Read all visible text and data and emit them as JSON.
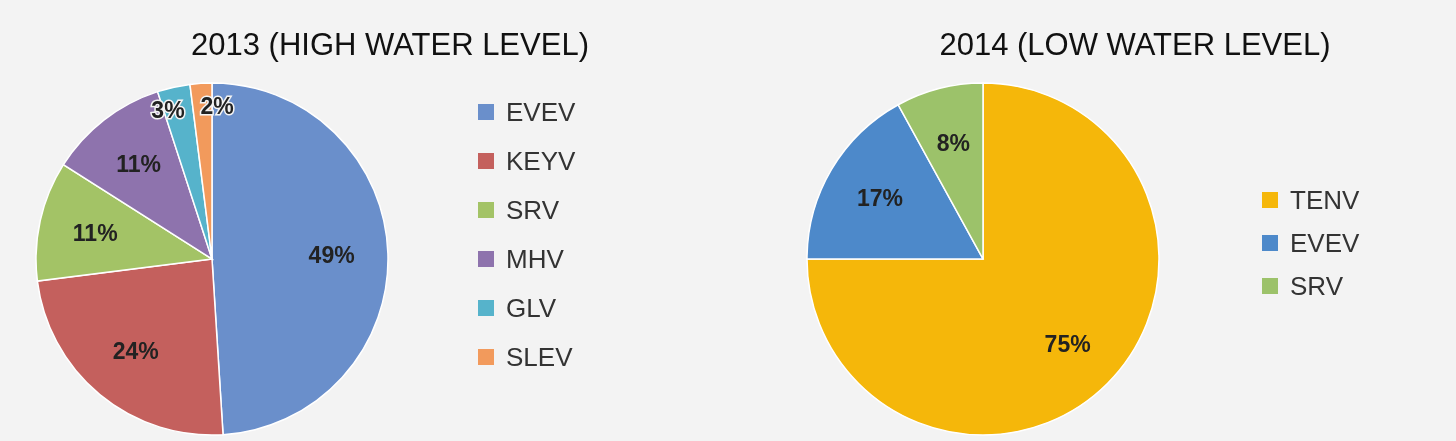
{
  "chart_data": [
    {
      "type": "pie",
      "title": "2013 (HIGH WATER LEVEL)",
      "categories": [
        "EVEV",
        "KEYV",
        "SRV",
        "MHV",
        "GLV",
        "SLEV"
      ],
      "values": [
        49,
        24,
        11,
        11,
        3,
        2
      ],
      "colors": [
        "#6a8fcb",
        "#c4605d",
        "#a3c366",
        "#8e73ad",
        "#56b3cb",
        "#f29a5c"
      ],
      "value_labels": [
        "49%",
        "24%",
        "11%",
        "11%",
        "3%",
        "2%"
      ],
      "legend": "right"
    },
    {
      "type": "pie",
      "title": "2014 (LOW WATER LEVEL)",
      "categories": [
        "TENV",
        "EVEV",
        "SRV"
      ],
      "values": [
        75,
        17,
        8
      ],
      "colors": [
        "#f5b70a",
        "#4d89ca",
        "#9cc26a"
      ],
      "value_labels": [
        "75%",
        "17%",
        "8%"
      ],
      "legend": "right"
    }
  ]
}
